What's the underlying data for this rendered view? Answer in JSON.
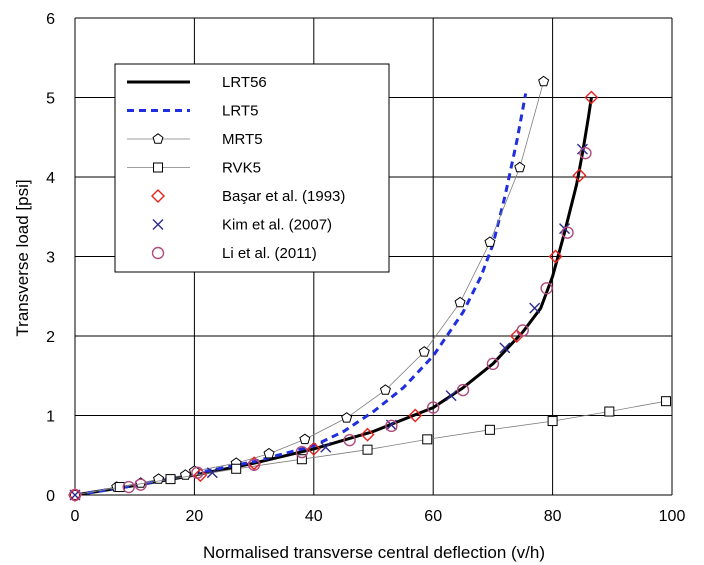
{
  "chart_data": {
    "type": "line",
    "title": "",
    "xlabel": "Normalised transverse central deflection (v/h)",
    "ylabel": "Transverse load [psi]",
    "xlim": [
      0,
      100
    ],
    "ylim": [
      0,
      6
    ],
    "xticks": [
      "0",
      "20",
      "40",
      "60",
      "80",
      "100"
    ],
    "yticks": [
      "0",
      "1",
      "2",
      "3",
      "4",
      "5",
      "6"
    ],
    "grid": true,
    "legend_position": "top-left",
    "series": [
      {
        "name": "LRT56",
        "style": "solid-thick",
        "color": "#000000",
        "x": [
          0,
          10,
          20,
          30,
          40,
          50,
          60,
          65,
          70,
          75,
          78,
          80,
          82,
          84,
          85,
          86,
          86.5
        ],
        "y": [
          0,
          0.12,
          0.25,
          0.4,
          0.58,
          0.8,
          1.1,
          1.35,
          1.65,
          2.05,
          2.35,
          2.75,
          3.3,
          3.9,
          4.3,
          4.75,
          5.0
        ]
      },
      {
        "name": "LRT5",
        "style": "dashed",
        "color": "#1f2fe0",
        "x": [
          0,
          10,
          20,
          30,
          40,
          45,
          50,
          55,
          60,
          65,
          68,
          70,
          72,
          74,
          75.5
        ],
        "y": [
          0,
          0.12,
          0.27,
          0.42,
          0.62,
          0.8,
          1.05,
          1.35,
          1.75,
          2.3,
          2.75,
          3.15,
          3.75,
          4.45,
          5.05
        ]
      },
      {
        "name": "MRT5",
        "marker": "pentagon",
        "color": "#7f7f7f",
        "x": [
          0,
          7,
          11,
          14,
          18.5,
          20,
          27,
          32.5,
          38.5,
          45.5,
          52,
          58.5,
          64.5,
          69.5,
          74.5,
          78.5
        ],
        "y": [
          0,
          0.1,
          0.15,
          0.2,
          0.25,
          0.3,
          0.4,
          0.52,
          0.7,
          0.97,
          1.32,
          1.8,
          2.42,
          3.18,
          4.12,
          5.2
        ]
      },
      {
        "name": "RVK5",
        "marker": "square",
        "color": "#7f7f7f",
        "x": [
          0,
          7.5,
          16,
          27,
          38,
          49,
          59,
          69.5,
          80,
          89.5,
          99
        ],
        "y": [
          0,
          0.1,
          0.2,
          0.33,
          0.45,
          0.57,
          0.7,
          0.82,
          0.93,
          1.05,
          1.18
        ]
      },
      {
        "name": "Başar et al. (1993)",
        "marker": "diamond",
        "color": "#e8231e",
        "x": [
          0,
          21,
          30,
          40,
          49,
          57,
          74,
          80.5,
          84.5,
          86.5
        ],
        "y": [
          0,
          0.25,
          0.4,
          0.58,
          0.76,
          1.0,
          2.0,
          3.0,
          4.02,
          5.0
        ]
      },
      {
        "name": "Kim et al. (2007)",
        "marker": "x",
        "color": "#2b2b8f",
        "x": [
          0,
          23,
          42,
          53,
          63,
          72,
          77,
          82,
          85
        ],
        "y": [
          0,
          0.28,
          0.6,
          0.88,
          1.25,
          1.85,
          2.35,
          3.35,
          4.35
        ]
      },
      {
        "name": "Li et al. (2011)",
        "marker": "circle",
        "color": "#b04a7d",
        "x": [
          0,
          9,
          11,
          20.5,
          30,
          38,
          46,
          53,
          60,
          65,
          70,
          75,
          79,
          82.5,
          85.5
        ],
        "y": [
          0,
          0.1,
          0.13,
          0.28,
          0.38,
          0.54,
          0.69,
          0.87,
          1.1,
          1.32,
          1.65,
          2.07,
          2.6,
          3.3,
          4.3
        ]
      }
    ]
  }
}
